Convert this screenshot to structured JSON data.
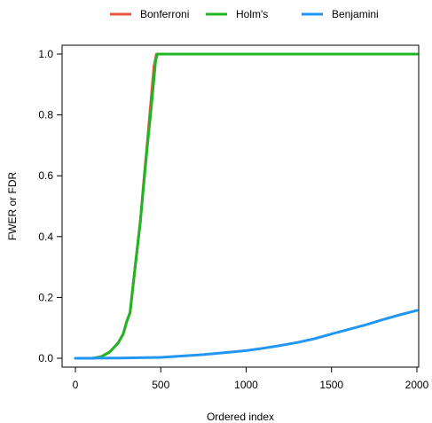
{
  "chart_data": {
    "type": "line",
    "xlabel": "Ordered index",
    "ylabel": "FWER or FDR",
    "xlim": [
      0,
      2000
    ],
    "ylim": [
      0,
      1
    ],
    "xticks": [
      0,
      500,
      1000,
      1500,
      2000
    ],
    "yticks": [
      0.0,
      0.2,
      0.4,
      0.6,
      0.8,
      1.0
    ],
    "xtick_labels": [
      "0",
      "500",
      "1000",
      "1500",
      "2000"
    ],
    "ytick_labels": [
      "0.0",
      "0.2",
      "0.4",
      "0.6",
      "0.8",
      "1.0"
    ],
    "legend_position": "top-center",
    "grid": false,
    "series": [
      {
        "name": "Bonferroni",
        "color": "#e8553e",
        "x": [
          0,
          100,
          150,
          200,
          250,
          280,
          300,
          320,
          340,
          360,
          380,
          400,
          420,
          440,
          460,
          475,
          480,
          500,
          1000,
          1500,
          2000
        ],
        "y": [
          0.0,
          0.0,
          0.005,
          0.02,
          0.05,
          0.08,
          0.12,
          0.15,
          0.25,
          0.35,
          0.45,
          0.58,
          0.7,
          0.83,
          0.96,
          1.0,
          1.0,
          1.0,
          1.0,
          1.0,
          1.0
        ]
      },
      {
        "name": "Holm's",
        "color": "#22b523",
        "x": [
          0,
          100,
          150,
          200,
          250,
          280,
          300,
          320,
          340,
          360,
          380,
          400,
          420,
          440,
          460,
          470,
          480,
          500,
          1000,
          1500,
          2000
        ],
        "y": [
          0.0,
          0.0,
          0.005,
          0.02,
          0.05,
          0.08,
          0.12,
          0.15,
          0.25,
          0.35,
          0.45,
          0.57,
          0.69,
          0.8,
          0.92,
          0.98,
          1.0,
          1.0,
          1.0,
          1.0,
          1.0
        ]
      },
      {
        "name": "Benjamini",
        "color": "#2196f3",
        "x": [
          0,
          250,
          500,
          750,
          1000,
          1100,
          1200,
          1300,
          1400,
          1500,
          1600,
          1700,
          1800,
          1900,
          2000
        ],
        "y": [
          0.0,
          0.001,
          0.003,
          0.012,
          0.025,
          0.033,
          0.042,
          0.052,
          0.064,
          0.08,
          0.095,
          0.11,
          0.127,
          0.143,
          0.157
        ]
      }
    ]
  }
}
